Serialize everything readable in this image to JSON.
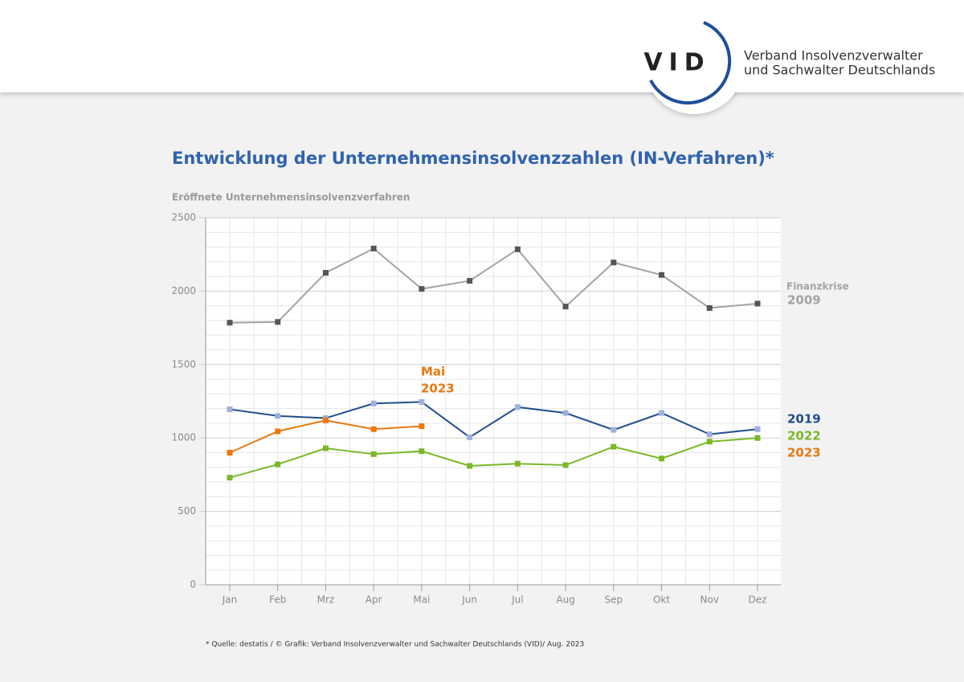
{
  "header": {
    "logo": "VID",
    "org_line1": "Verband Insolvenzverwalter",
    "org_line2": "und Sachwalter Deutschlands"
  },
  "chart_data": {
    "type": "line",
    "title": "Entwicklung der Unternehmensinsolvenzzahlen (IN-Verfahren)*",
    "y_label": "Eröffnete Unternehmensinsolvenzverfahren",
    "categories": [
      "Jan",
      "Feb",
      "Mrz",
      "Apr",
      "Mai",
      "Jun",
      "Jul",
      "Aug",
      "Sep",
      "Okt",
      "Nov",
      "Dez"
    ],
    "series": [
      {
        "name": "2009",
        "color": "#a3a3a3",
        "marker_color": "#555555",
        "values": [
          1785,
          1790,
          2125,
          2290,
          2015,
          2070,
          2285,
          1895,
          2195,
          2110,
          1885,
          1915
        ]
      },
      {
        "name": "2019",
        "color": "#1f4e8c",
        "marker_color": "#9fb0de",
        "values": [
          1195,
          1150,
          1135,
          1235,
          1245,
          1005,
          1210,
          1170,
          1055,
          1170,
          1025,
          1060
        ]
      },
      {
        "name": "2022",
        "color": "#7ab829",
        "marker_color": "#7ab829",
        "values": [
          730,
          820,
          930,
          890,
          910,
          810,
          825,
          815,
          940,
          860,
          975,
          1000
        ]
      },
      {
        "name": "2023",
        "color": "#e8780f",
        "marker_color": "#e8780f",
        "values": [
          900,
          1045,
          1120,
          1060,
          1080,
          null,
          null,
          null,
          null,
          null,
          null,
          null
        ]
      }
    ],
    "annotations": {
      "crisis": "Finanzkrise",
      "mai_line1": "Mai",
      "mai_line2": "2023"
    },
    "ylim": [
      0,
      2500
    ],
    "yticks": [
      0,
      500,
      1000,
      1500,
      2000,
      2500
    ],
    "minor_yticks": [
      100,
      200,
      300,
      400,
      600,
      700,
      800,
      900,
      1100,
      1200,
      1300,
      1400,
      1600,
      1700,
      1800,
      1900,
      2100,
      2200,
      2300,
      2400
    ],
    "grid": true,
    "footnote": "* Quelle: destatis / © Grafik: Verband Insolvenzverwalter und Sachwalter Deutschlands (VID)/ Aug. 2023"
  }
}
